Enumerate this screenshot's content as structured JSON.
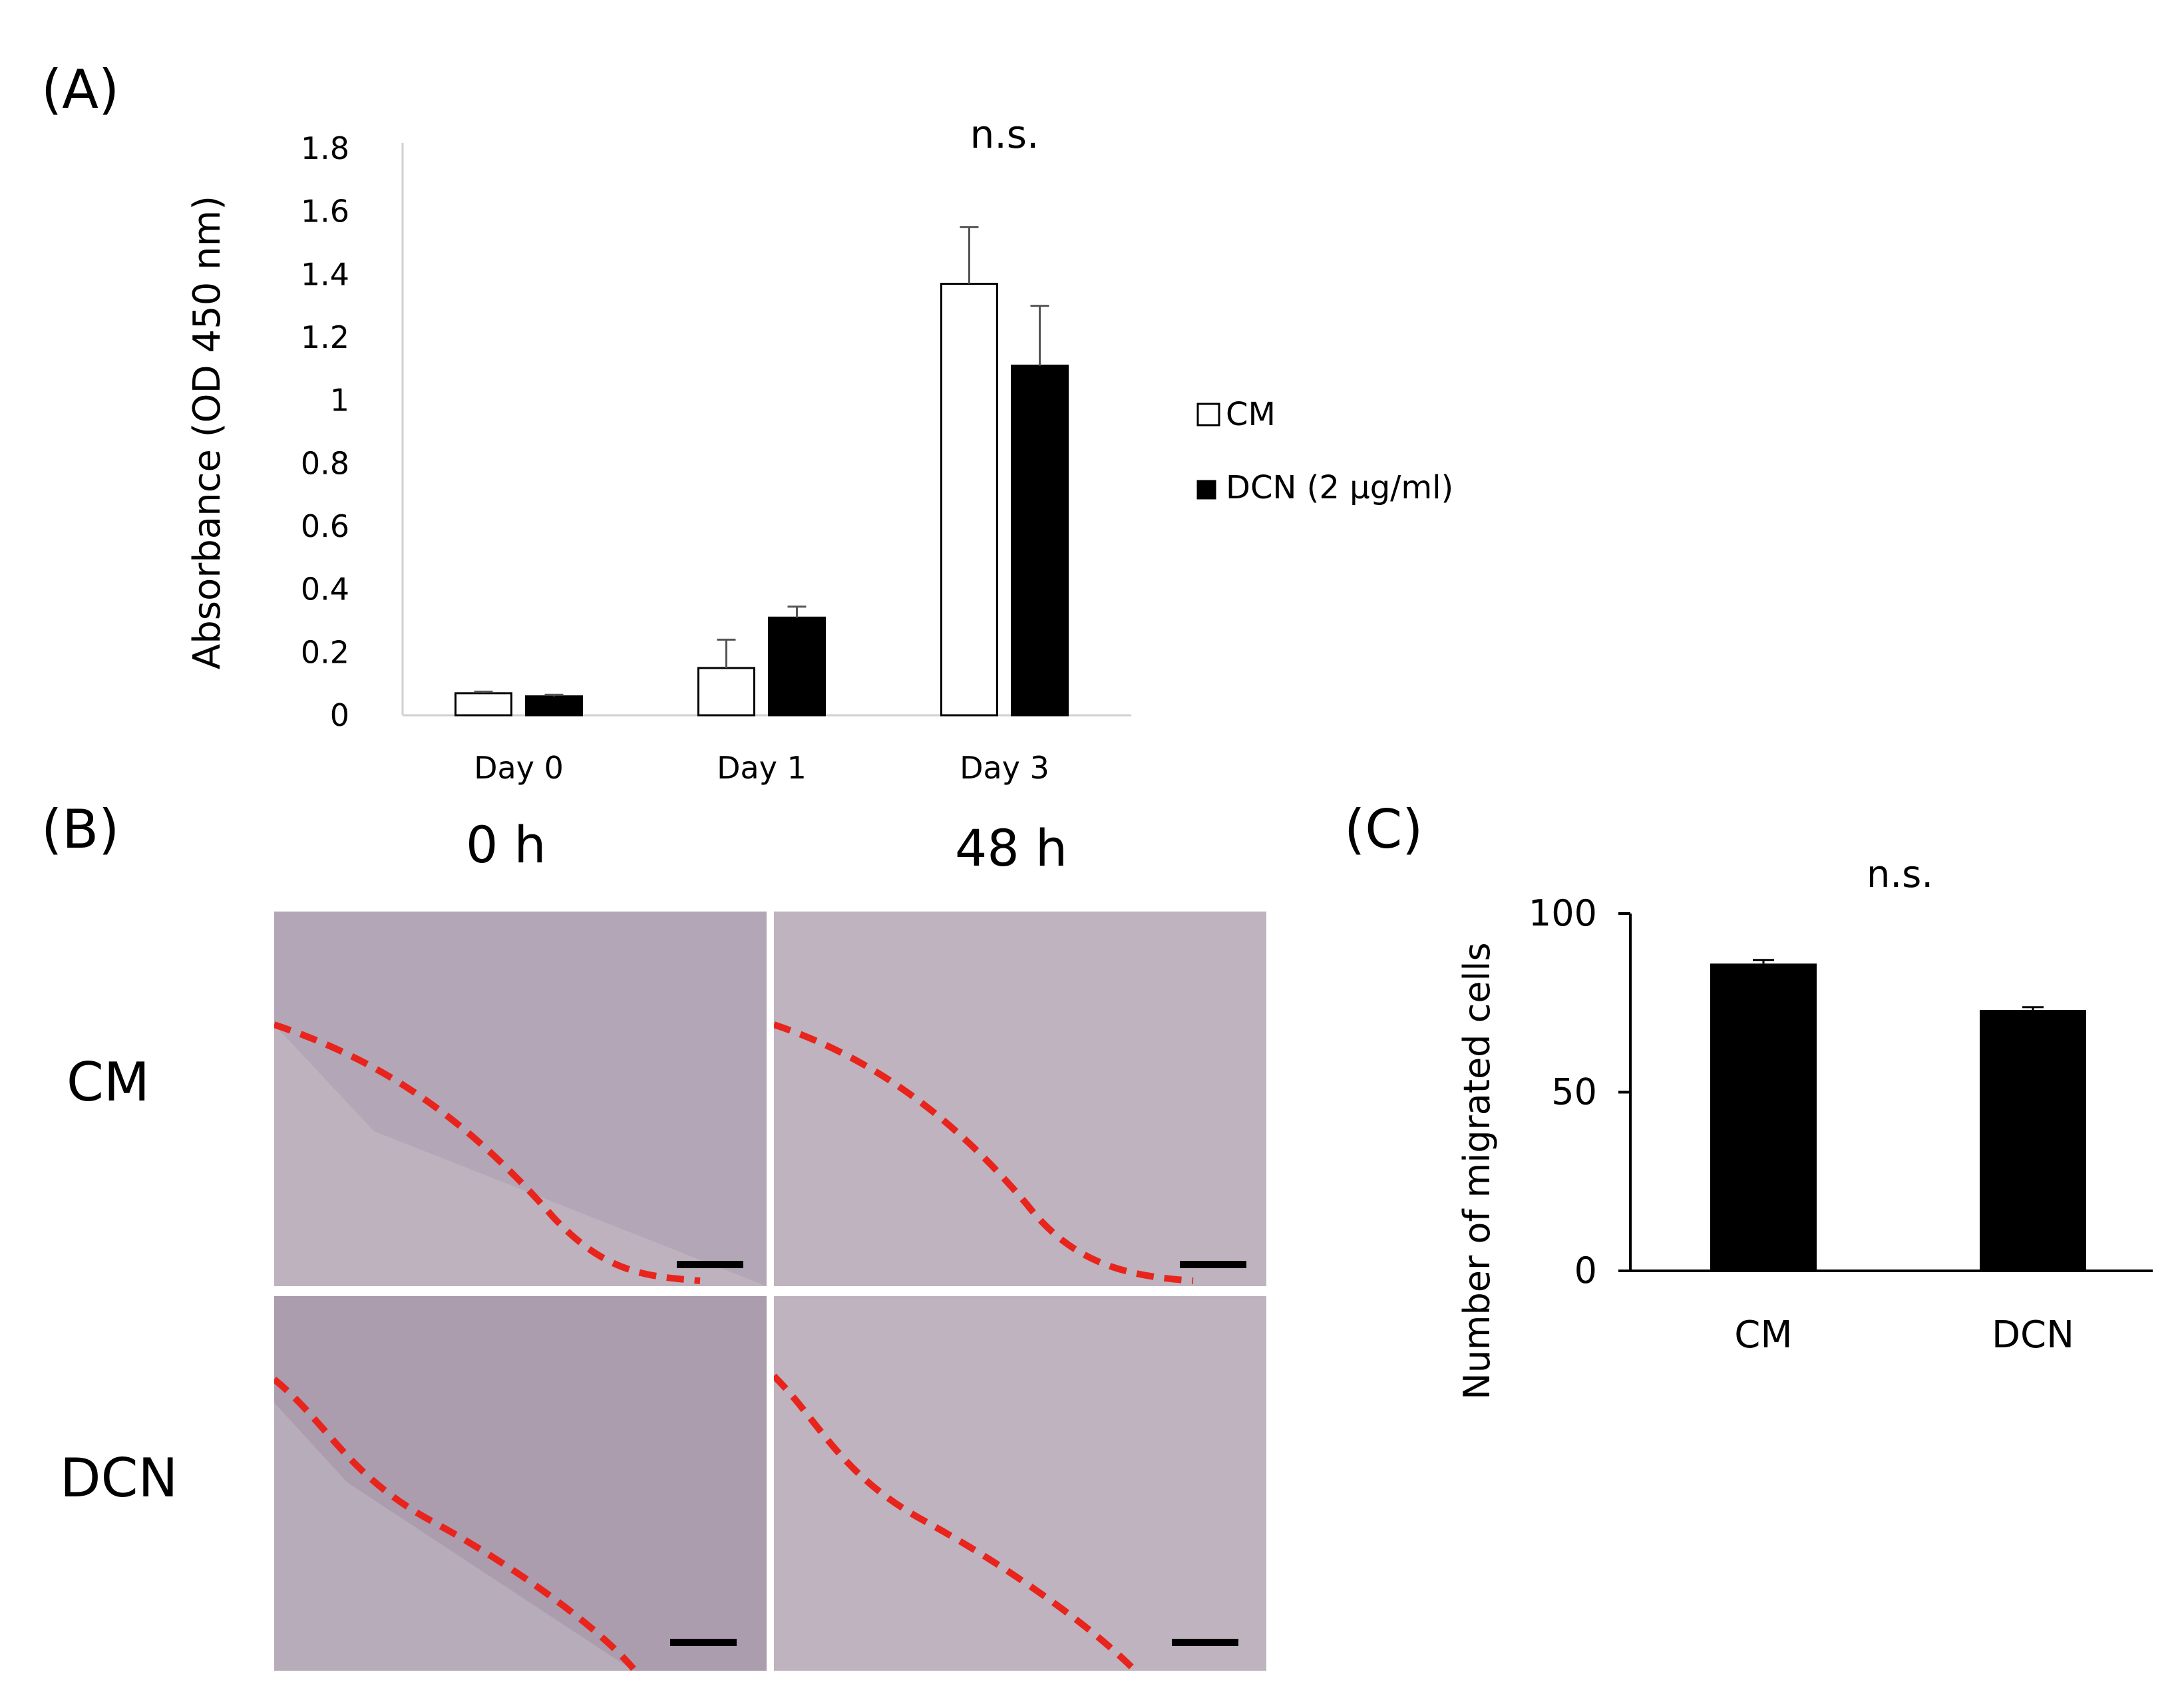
{
  "panels": {
    "a": {
      "label": "(A)"
    },
    "b": {
      "label": "(B)",
      "columns": [
        "0 h",
        "48 h"
      ],
      "rows": [
        "CM",
        "DCN"
      ],
      "image_colors": {
        "background": "#b3a6b6",
        "boundary": "#e8241c",
        "scale_bar": "#000000"
      }
    },
    "c": {
      "label": "(C)"
    }
  },
  "chart_data": [
    {
      "type": "bar",
      "categories": [
        "Day 0",
        "Day 1",
        "Day 3"
      ],
      "series": [
        {
          "name": "CM",
          "values": [
            0.07,
            0.15,
            1.37
          ],
          "errors": [
            0.005,
            0.09,
            0.18
          ],
          "fill": "#ffffff"
        },
        {
          "name": "DCN (2 μg/ml)",
          "values": [
            0.06,
            0.31,
            1.11
          ],
          "errors": [
            0.005,
            0.035,
            0.19
          ],
          "fill": "#000000"
        }
      ],
      "ylabel": "Absorbance (OD 450 nm)",
      "ylim": [
        0,
        1.8
      ],
      "yticks": [
        "0",
        "0.2",
        "0.4",
        "0.6",
        "0.8",
        "1",
        "1.2",
        "1.4",
        "1.6",
        "1.8"
      ],
      "annotations": [
        {
          "text": "n.s.",
          "category": "Day 3"
        }
      ],
      "legend": "right",
      "grid": false
    },
    {
      "type": "bar",
      "categories": [
        "CM",
        "DCN"
      ],
      "series": [
        {
          "values": [
            86,
            73
          ],
          "errors": [
            1.0,
            0.8
          ],
          "fill": "#000000"
        }
      ],
      "ylabel": "Number of migrated cells",
      "ylim": [
        0,
        100
      ],
      "yticks": [
        "0",
        "50",
        "100"
      ],
      "annotations": [
        {
          "text": "n.s."
        }
      ],
      "grid": false
    }
  ]
}
